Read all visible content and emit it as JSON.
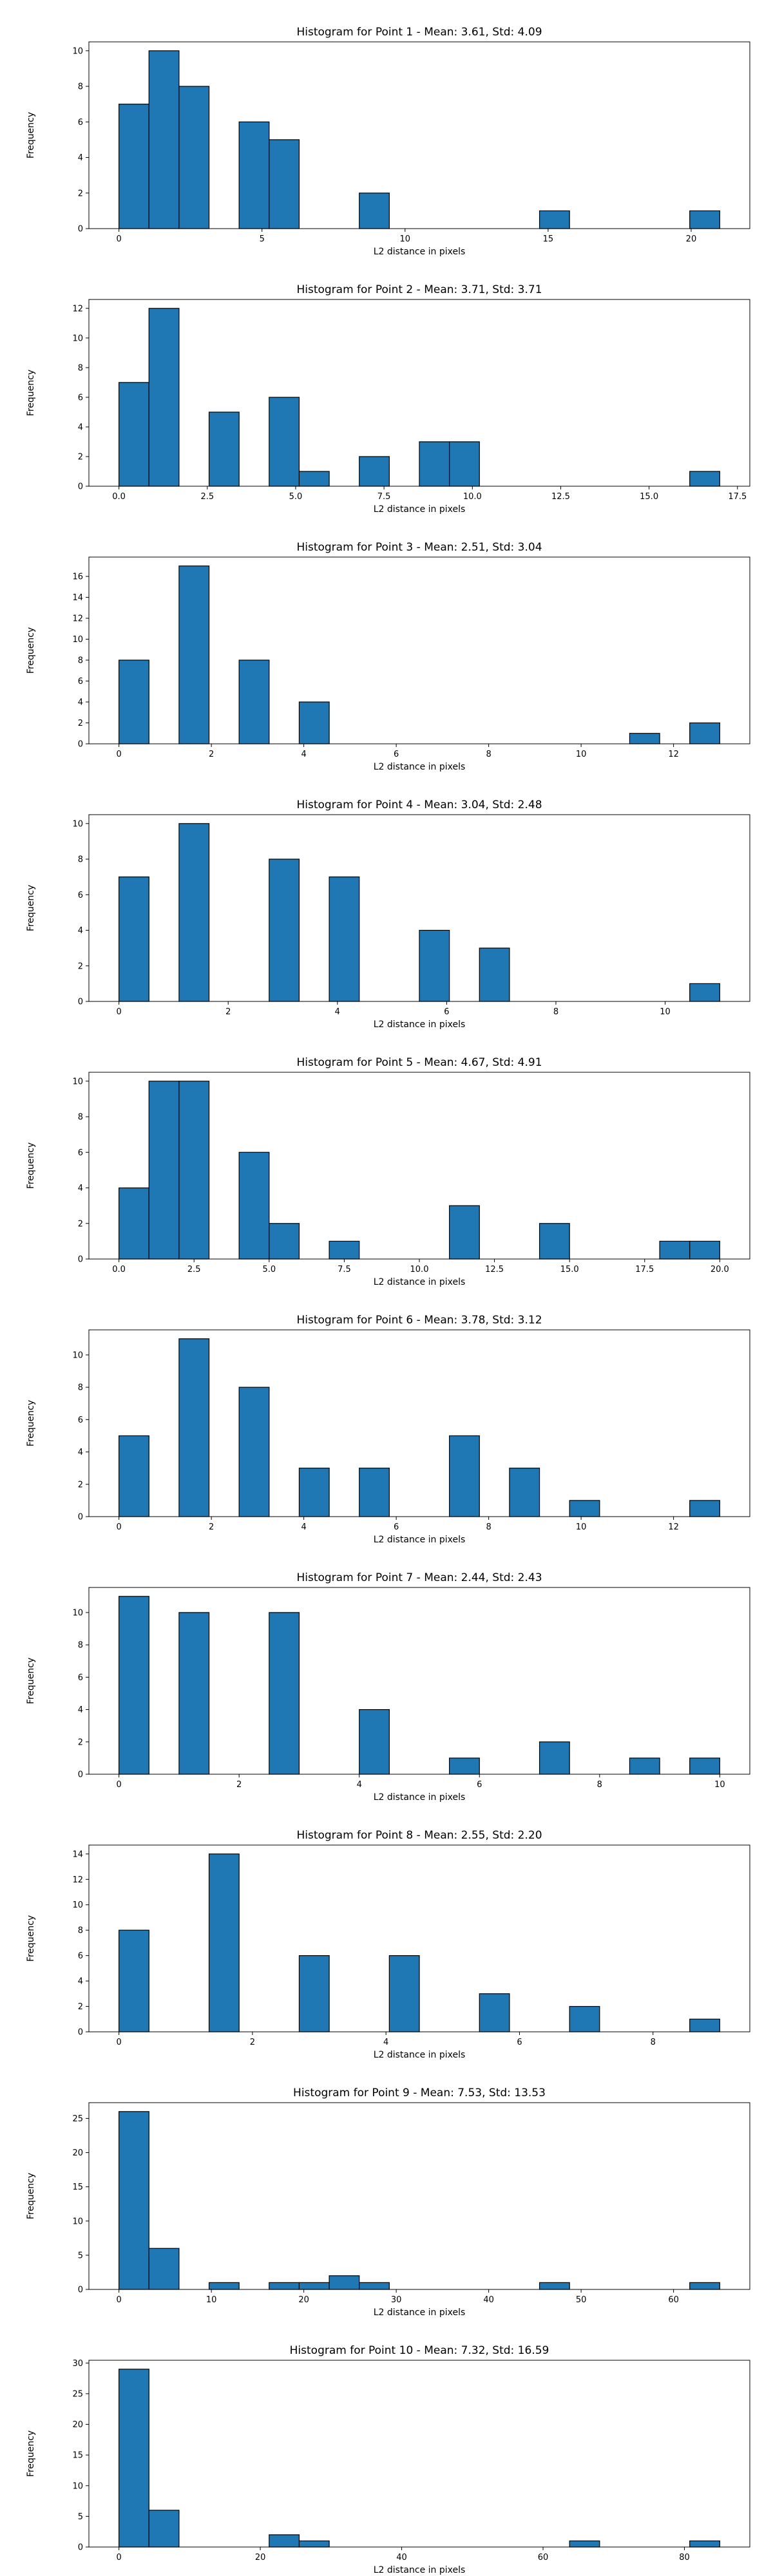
{
  "chart_data": [
    {
      "type": "bar",
      "title": "Histogram for Point 1 - Mean: 3.61, Std: 4.09",
      "xlabel": "L2 distance in pixels",
      "ylabel": "Frequency",
      "xlim": [
        -1.05,
        22.05
      ],
      "ylim": [
        0,
        10.5
      ],
      "xticks": [
        0,
        5,
        10,
        15,
        20
      ],
      "xtick_labels": [
        "0",
        "5",
        "10",
        "15",
        "20"
      ],
      "yticks": [
        0,
        2,
        4,
        6,
        8,
        10
      ],
      "ytick_labels": [
        "0",
        "2",
        "4",
        "6",
        "8",
        "10"
      ],
      "bin_edges": [
        0.0,
        1.05,
        2.1,
        3.15,
        4.2,
        5.25,
        6.3,
        7.35,
        8.4,
        9.45,
        10.5,
        11.55,
        12.6,
        13.65,
        14.7,
        15.75,
        16.8,
        17.85,
        18.9,
        19.95,
        21.0
      ],
      "values": [
        7,
        10,
        8,
        0,
        6,
        5,
        0,
        0,
        2,
        0,
        0,
        0,
        0,
        0,
        1,
        0,
        0,
        0,
        0,
        1
      ],
      "color": "#1f77b4",
      "edgecolor": "#000000"
    },
    {
      "type": "bar",
      "title": "Histogram for Point 2 - Mean: 3.71, Std: 3.71",
      "xlabel": "L2 distance in pixels",
      "ylabel": "Frequency",
      "xlim": [
        -0.85,
        17.85
      ],
      "ylim": [
        0,
        12.6
      ],
      "xticks": [
        0,
        2.5,
        5,
        7.5,
        10,
        12.5,
        15,
        17.5
      ],
      "xtick_labels": [
        "0.0",
        "2.5",
        "5.0",
        "7.5",
        "10.0",
        "12.5",
        "15.0",
        "17.5"
      ],
      "yticks": [
        0,
        2,
        4,
        6,
        8,
        10,
        12
      ],
      "ytick_labels": [
        "0",
        "2",
        "4",
        "6",
        "8",
        "10",
        "12"
      ],
      "bin_edges": [
        0.0,
        0.85,
        1.7,
        2.55,
        3.4,
        4.25,
        5.1,
        5.95,
        6.8,
        7.65,
        8.5,
        9.35,
        10.2,
        11.05,
        11.9,
        12.75,
        13.6,
        14.45,
        15.3,
        16.15,
        17.0
      ],
      "values": [
        7,
        12,
        0,
        5,
        0,
        6,
        1,
        0,
        2,
        0,
        3,
        3,
        0,
        0,
        0,
        0,
        0,
        0,
        0,
        1
      ],
      "color": "#1f77b4",
      "edgecolor": "#000000"
    },
    {
      "type": "bar",
      "title": "Histogram for Point 3 - Mean: 2.51, Std: 3.04",
      "xlabel": "L2 distance in pixels",
      "ylabel": "Frequency",
      "xlim": [
        -0.65,
        13.65
      ],
      "ylim": [
        0,
        17.85
      ],
      "xticks": [
        0,
        2,
        4,
        6,
        8,
        10,
        12
      ],
      "xtick_labels": [
        "0",
        "2",
        "4",
        "6",
        "8",
        "10",
        "12"
      ],
      "yticks": [
        0,
        2,
        4,
        6,
        8,
        10,
        12,
        14,
        16
      ],
      "ytick_labels": [
        "0",
        "2",
        "4",
        "6",
        "8",
        "10",
        "12",
        "14",
        "16"
      ],
      "bin_edges": [
        0.0,
        0.65,
        1.3,
        1.95,
        2.6,
        3.25,
        3.9,
        4.55,
        5.2,
        5.85,
        6.5,
        7.15,
        7.8,
        8.45,
        9.1,
        9.75,
        10.4,
        11.05,
        11.7,
        12.35,
        13.0
      ],
      "values": [
        8,
        0,
        17,
        0,
        8,
        0,
        4,
        0,
        0,
        0,
        0,
        0,
        0,
        0,
        0,
        0,
        0,
        1,
        0,
        2
      ],
      "color": "#1f77b4",
      "edgecolor": "#000000"
    },
    {
      "type": "bar",
      "title": "Histogram for Point 4 - Mean: 3.04, Std: 2.48",
      "xlabel": "L2 distance in pixels",
      "ylabel": "Frequency",
      "xlim": [
        -0.55,
        11.55
      ],
      "ylim": [
        0,
        10.5
      ],
      "xticks": [
        0,
        2,
        4,
        6,
        8,
        10
      ],
      "xtick_labels": [
        "0",
        "2",
        "4",
        "6",
        "8",
        "10"
      ],
      "yticks": [
        0,
        2,
        4,
        6,
        8,
        10
      ],
      "ytick_labels": [
        "0",
        "2",
        "4",
        "6",
        "8",
        "10"
      ],
      "bin_edges": [
        0.0,
        0.55,
        1.1,
        1.65,
        2.2,
        2.75,
        3.3,
        3.85,
        4.4,
        4.95,
        5.5,
        6.05,
        6.6,
        7.15,
        7.7,
        8.25,
        8.8,
        9.35,
        9.9,
        10.45,
        11.0
      ],
      "values": [
        7,
        0,
        10,
        0,
        0,
        8,
        0,
        7,
        0,
        0,
        4,
        0,
        3,
        0,
        0,
        0,
        0,
        0,
        0,
        1
      ],
      "color": "#1f77b4",
      "edgecolor": "#000000"
    },
    {
      "type": "bar",
      "title": "Histogram for Point 5 - Mean: 4.67, Std: 4.91",
      "xlabel": "L2 distance in pixels",
      "ylabel": "Frequency",
      "xlim": [
        -1.0,
        21.0
      ],
      "ylim": [
        0,
        10.5
      ],
      "xticks": [
        0,
        2.5,
        5,
        7.5,
        10,
        12.5,
        15,
        17.5,
        20
      ],
      "xtick_labels": [
        "0.0",
        "2.5",
        "5.0",
        "7.5",
        "10.0",
        "12.5",
        "15.0",
        "17.5",
        "20.0"
      ],
      "yticks": [
        0,
        2,
        4,
        6,
        8,
        10
      ],
      "ytick_labels": [
        "0",
        "2",
        "4",
        "6",
        "8",
        "10"
      ],
      "bin_edges": [
        0.0,
        1.0,
        2.0,
        3.0,
        4.0,
        5.0,
        6.0,
        7.0,
        8.0,
        9.0,
        10.0,
        11.0,
        12.0,
        13.0,
        14.0,
        15.0,
        16.0,
        17.0,
        18.0,
        19.0,
        20.0
      ],
      "values": [
        4,
        10,
        10,
        0,
        6,
        2,
        0,
        1,
        0,
        0,
        0,
        3,
        0,
        0,
        2,
        0,
        0,
        0,
        1,
        1
      ],
      "color": "#1f77b4",
      "edgecolor": "#000000"
    },
    {
      "type": "bar",
      "title": "Histogram for Point 6 - Mean: 3.78, Std: 3.12",
      "xlabel": "L2 distance in pixels",
      "ylabel": "Frequency",
      "xlim": [
        -0.65,
        13.65
      ],
      "ylim": [
        0,
        11.55
      ],
      "xticks": [
        0,
        2,
        4,
        6,
        8,
        10,
        12
      ],
      "xtick_labels": [
        "0",
        "2",
        "4",
        "6",
        "8",
        "10",
        "12"
      ],
      "yticks": [
        0,
        2,
        4,
        6,
        8,
        10
      ],
      "ytick_labels": [
        "0",
        "2",
        "4",
        "6",
        "8",
        "10"
      ],
      "bin_edges": [
        0.0,
        0.65,
        1.3,
        1.95,
        2.6,
        3.25,
        3.9,
        4.55,
        5.2,
        5.85,
        6.5,
        7.15,
        7.8,
        8.45,
        9.1,
        9.75,
        10.4,
        11.05,
        11.7,
        12.35,
        13.0
      ],
      "values": [
        5,
        0,
        11,
        0,
        8,
        0,
        3,
        0,
        3,
        0,
        0,
        5,
        0,
        3,
        0,
        1,
        0,
        0,
        0,
        1
      ],
      "color": "#1f77b4",
      "edgecolor": "#000000"
    },
    {
      "type": "bar",
      "title": "Histogram for Point 7 - Mean: 2.44, Std: 2.43",
      "xlabel": "L2 distance in pixels",
      "ylabel": "Frequency",
      "xlim": [
        -0.5,
        10.5
      ],
      "ylim": [
        0,
        11.55
      ],
      "xticks": [
        0,
        2,
        4,
        6,
        8,
        10
      ],
      "xtick_labels": [
        "0",
        "2",
        "4",
        "6",
        "8",
        "10"
      ],
      "yticks": [
        0,
        2,
        4,
        6,
        8,
        10
      ],
      "ytick_labels": [
        "0",
        "2",
        "4",
        "6",
        "8",
        "10"
      ],
      "bin_edges": [
        0.0,
        0.5,
        1.0,
        1.5,
        2.0,
        2.5,
        3.0,
        3.5,
        4.0,
        4.5,
        5.0,
        5.5,
        6.0,
        6.5,
        7.0,
        7.5,
        8.0,
        8.5,
        9.0,
        9.5,
        10.0
      ],
      "values": [
        11,
        0,
        10,
        0,
        0,
        10,
        0,
        0,
        4,
        0,
        0,
        1,
        0,
        0,
        2,
        0,
        0,
        1,
        0,
        1
      ],
      "color": "#1f77b4",
      "edgecolor": "#000000"
    },
    {
      "type": "bar",
      "title": "Histogram for Point 8 - Mean: 2.55, Std: 2.20",
      "xlabel": "L2 distance in pixels",
      "ylabel": "Frequency",
      "xlim": [
        -0.45,
        9.45
      ],
      "ylim": [
        0,
        14.7
      ],
      "xticks": [
        0,
        2,
        4,
        6,
        8
      ],
      "xtick_labels": [
        "0",
        "2",
        "4",
        "6",
        "8"
      ],
      "yticks": [
        0,
        2,
        4,
        6,
        8,
        10,
        12,
        14
      ],
      "ytick_labels": [
        "0",
        "2",
        "4",
        "6",
        "8",
        "10",
        "12",
        "14"
      ],
      "bin_edges": [
        0.0,
        0.45,
        0.9,
        1.35,
        1.8,
        2.25,
        2.7,
        3.15,
        3.6,
        4.05,
        4.5,
        4.95,
        5.4,
        5.85,
        6.3,
        6.75,
        7.2,
        7.65,
        8.1,
        8.55,
        9.0
      ],
      "values": [
        8,
        0,
        0,
        14,
        0,
        0,
        6,
        0,
        0,
        6,
        0,
        0,
        3,
        0,
        0,
        2,
        0,
        0,
        0,
        1
      ],
      "color": "#1f77b4",
      "edgecolor": "#000000"
    },
    {
      "type": "bar",
      "title": "Histogram for Point 9 - Mean: 7.53, Std: 13.53",
      "xlabel": "L2 distance in pixels",
      "ylabel": "Frequency",
      "xlim": [
        -3.25,
        68.25
      ],
      "ylim": [
        0,
        27.3
      ],
      "xticks": [
        0,
        10,
        20,
        30,
        40,
        50,
        60
      ],
      "xtick_labels": [
        "0",
        "10",
        "20",
        "30",
        "40",
        "50",
        "60"
      ],
      "yticks": [
        0,
        5,
        10,
        15,
        20,
        25
      ],
      "ytick_labels": [
        "0",
        "5",
        "10",
        "15",
        "20",
        "25"
      ],
      "bin_edges": [
        0.0,
        3.25,
        6.5,
        9.75,
        13.0,
        16.25,
        19.5,
        22.75,
        26.0,
        29.25,
        32.5,
        35.75,
        39.0,
        42.25,
        45.5,
        48.75,
        52.0,
        55.25,
        58.5,
        61.75,
        65.0
      ],
      "values": [
        26,
        6,
        0,
        1,
        0,
        1,
        1,
        2,
        1,
        0,
        0,
        0,
        0,
        0,
        1,
        0,
        0,
        0,
        0,
        1
      ],
      "color": "#1f77b4",
      "edgecolor": "#000000"
    },
    {
      "type": "bar",
      "title": "Histogram for Point 10 - Mean: 7.32, Std: 16.59",
      "xlabel": "L2 distance in pixels",
      "ylabel": "Frequency",
      "xlim": [
        -4.25,
        89.25
      ],
      "ylim": [
        0,
        30.45
      ],
      "xticks": [
        0,
        20,
        40,
        60,
        80
      ],
      "xtick_labels": [
        "0",
        "20",
        "40",
        "60",
        "80"
      ],
      "yticks": [
        0,
        5,
        10,
        15,
        20,
        25,
        30
      ],
      "ytick_labels": [
        "0",
        "5",
        "10",
        "15",
        "20",
        "25",
        "30"
      ],
      "bin_edges": [
        0.0,
        4.25,
        8.5,
        12.75,
        17.0,
        21.25,
        25.5,
        29.75,
        34.0,
        38.25,
        42.5,
        46.75,
        51.0,
        55.25,
        59.5,
        63.75,
        68.0,
        72.25,
        76.5,
        80.75,
        85.0
      ],
      "values": [
        29,
        6,
        0,
        0,
        0,
        2,
        1,
        0,
        0,
        0,
        0,
        0,
        0,
        0,
        0,
        1,
        0,
        0,
        0,
        1
      ],
      "color": "#1f77b4",
      "edgecolor": "#000000"
    }
  ]
}
